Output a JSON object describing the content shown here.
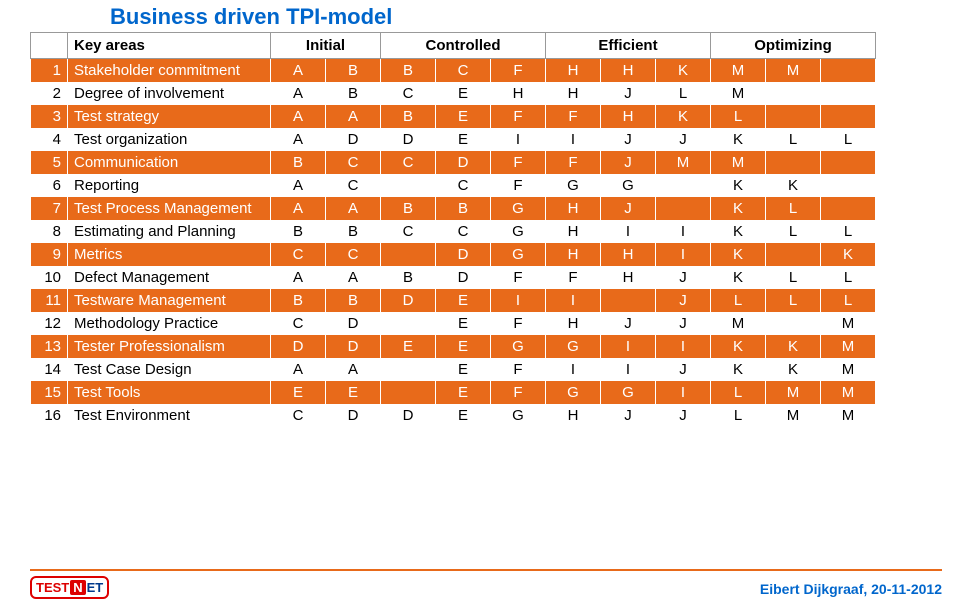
{
  "title": "Business driven TPI-model",
  "footer": "Eibert Dijkgraaf, 20-11-2012",
  "logo": {
    "part1": "TEST",
    "part2": "N",
    "part3": "ET"
  },
  "columns": {
    "key_header": "Key areas",
    "groups": [
      "Initial",
      "Controlled",
      "Efficient",
      "Optimizing"
    ],
    "spans": [
      2,
      3,
      3,
      3
    ]
  },
  "colors": {
    "odd_bg": "#e86a1a",
    "odd_text": "#ffffff",
    "even_bg": "#ffffff",
    "even_text": "#000000",
    "title_color": "#0066cc",
    "footer_color": "#0066cc"
  },
  "rows": [
    {
      "n": "1",
      "key": "Stakeholder commitment",
      "cells": [
        "A",
        "B",
        "B",
        "C",
        "F",
        "H",
        "H",
        "K",
        "M",
        "M",
        ""
      ]
    },
    {
      "n": "2",
      "key": "Degree of involvement",
      "cells": [
        "A",
        "B",
        "C",
        "E",
        "H",
        "H",
        "J",
        "L",
        "M",
        "",
        ""
      ]
    },
    {
      "n": "3",
      "key": "Test strategy",
      "cells": [
        "A",
        "A",
        "B",
        "E",
        "F",
        "F",
        "H",
        "K",
        "L",
        "",
        ""
      ]
    },
    {
      "n": "4",
      "key": "Test organization",
      "cells": [
        "A",
        "D",
        "D",
        "E",
        "I",
        "I",
        "J",
        "J",
        "K",
        "L",
        "L"
      ]
    },
    {
      "n": "5",
      "key": "Communication",
      "cells": [
        "B",
        "C",
        "C",
        "D",
        "F",
        "F",
        "J",
        "M",
        "M",
        "",
        ""
      ]
    },
    {
      "n": "6",
      "key": "Reporting",
      "cells": [
        "A",
        "C",
        "",
        "C",
        "F",
        "G",
        "G",
        "",
        "K",
        "K",
        ""
      ]
    },
    {
      "n": "7",
      "key": "Test Process Management",
      "cells": [
        "A",
        "A",
        "B",
        "B",
        "G",
        "H",
        "J",
        "",
        "K",
        "L",
        ""
      ]
    },
    {
      "n": "8",
      "key": "Estimating and Planning",
      "cells": [
        "B",
        "B",
        "C",
        "C",
        "G",
        "H",
        "I",
        "I",
        "K",
        "L",
        "L"
      ]
    },
    {
      "n": "9",
      "key": "Metrics",
      "cells": [
        "C",
        "C",
        "",
        "D",
        "G",
        "H",
        "H",
        "I",
        "K",
        "",
        "K"
      ]
    },
    {
      "n": "10",
      "key": "Defect Management",
      "cells": [
        "A",
        "A",
        "B",
        "D",
        "F",
        "F",
        "H",
        "J",
        "K",
        "L",
        "L"
      ]
    },
    {
      "n": "11",
      "key": "Testware Management",
      "cells": [
        "B",
        "B",
        "D",
        "E",
        "I",
        "I",
        "",
        "J",
        "L",
        "L",
        "L"
      ]
    },
    {
      "n": "12",
      "key": "Methodology Practice",
      "cells": [
        "C",
        "D",
        "",
        "E",
        "F",
        "H",
        "J",
        "J",
        "M",
        "",
        "M"
      ]
    },
    {
      "n": "13",
      "key": "Tester Professionalism",
      "cells": [
        "D",
        "D",
        "E",
        "E",
        "G",
        "G",
        "I",
        "I",
        "K",
        "K",
        "M"
      ]
    },
    {
      "n": "14",
      "key": "Test Case Design",
      "cells": [
        "A",
        "A",
        "",
        "E",
        "F",
        "I",
        "I",
        "J",
        "K",
        "K",
        "M"
      ]
    },
    {
      "n": "15",
      "key": "Test Tools",
      "cells": [
        "E",
        "E",
        "",
        "E",
        "F",
        "G",
        "G",
        "I",
        "L",
        "M",
        "M"
      ]
    },
    {
      "n": "16",
      "key": "Test Environment",
      "cells": [
        "C",
        "D",
        "D",
        "E",
        "G",
        "H",
        "J",
        "J",
        "L",
        "M",
        "M"
      ]
    }
  ]
}
